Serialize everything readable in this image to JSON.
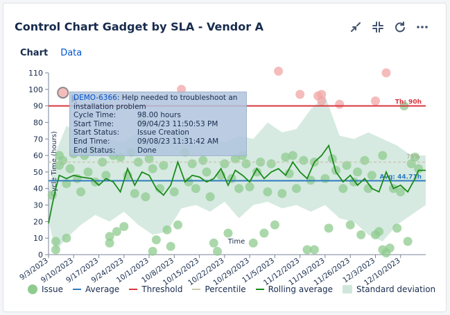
{
  "gadget": {
    "title": "Control Chart Gadget by SLA - Vendor A",
    "icons": [
      "minimize-icon",
      "collapse-icon",
      "refresh-icon",
      "more-icon"
    ]
  },
  "tabs": [
    {
      "label": "Chart"
    },
    {
      "label": "Data"
    }
  ],
  "tooltip": {
    "issue_key": "DEMO-6366",
    "summary": ": Help needed to troubleshoot an installation problem",
    "rows": [
      {
        "k": "Cycle Time:",
        "v": "98.00 hours"
      },
      {
        "k": "Start Time:",
        "v": "09/04/23 11:50:53 PM"
      },
      {
        "k": "Start Status:",
        "v": "Issue Creation"
      },
      {
        "k": "End Time:",
        "v": "09/08/23 11:31:42 AM"
      },
      {
        "k": "End Status:",
        "v": "Done"
      }
    ]
  },
  "legend": [
    {
      "label": "Issue"
    },
    {
      "label": "Average"
    },
    {
      "label": "Threshold"
    },
    {
      "label": "Percentile"
    },
    {
      "label": "Rolling average"
    },
    {
      "label": "Standard deviation"
    }
  ],
  "colors": {
    "issue": "#8fcb8f",
    "average": "#2e7bbf",
    "threshold": "#d9363e",
    "percentile": "#c9c9b0",
    "rolling": "#1a8a1a",
    "stddev": "#cfe6dc"
  },
  "chart_data": {
    "type": "scatter",
    "title": "",
    "xlabel": "Time",
    "ylabel": "Cycle Time (hours)",
    "ylim": [
      0,
      110
    ],
    "xlim": [
      "2023-09-03",
      "2023-12-17"
    ],
    "yticks": [
      "0",
      "10",
      "20",
      "30",
      "40",
      "50",
      "60",
      "70",
      "80",
      "90",
      "100",
      "110"
    ],
    "xticks": [
      "9/3/2023",
      "9/10/2023",
      "9/17/2023",
      "9/24/2023",
      "10/1/2023",
      "10/8/2023",
      "10/15/2023",
      "10/22/2023",
      "10/29/2023",
      "11/5/2023",
      "11/12/2023",
      "11/19/2023",
      "11/26/2023",
      "12/3/2023",
      "12/10/2023"
    ],
    "threshold": {
      "value": 90,
      "label": "Th: 90h"
    },
    "average": {
      "value": 44.71,
      "label": "Avg: 44.71h"
    },
    "percentile": {
      "value": 56,
      "label": "75%"
    },
    "issues": [
      {
        "x": "2023-09-04",
        "y": 36
      },
      {
        "x": "2023-09-05",
        "y": 8
      },
      {
        "x": "2023-09-05",
        "y": 3
      },
      {
        "x": "2023-09-06",
        "y": 60
      },
      {
        "x": "2023-09-06",
        "y": 54
      },
      {
        "x": "2023-09-07",
        "y": 98
      },
      {
        "x": "2023-09-07",
        "y": 57
      },
      {
        "x": "2023-09-08",
        "y": 43
      },
      {
        "x": "2023-09-08",
        "y": 10
      },
      {
        "x": "2023-09-09",
        "y": 52
      },
      {
        "x": "2023-09-10",
        "y": 61
      },
      {
        "x": "2023-09-11",
        "y": 46
      },
      {
        "x": "2023-09-12",
        "y": 38
      },
      {
        "x": "2023-09-13",
        "y": 60
      },
      {
        "x": "2023-09-14",
        "y": 50
      },
      {
        "x": "2023-09-15",
        "y": 63
      },
      {
        "x": "2023-09-16",
        "y": 44
      },
      {
        "x": "2023-09-18",
        "y": 56
      },
      {
        "x": "2023-09-19",
        "y": 48
      },
      {
        "x": "2023-09-20",
        "y": 11
      },
      {
        "x": "2023-09-20",
        "y": 7
      },
      {
        "x": "2023-09-21",
        "y": 60
      },
      {
        "x": "2023-09-22",
        "y": 14
      },
      {
        "x": "2023-09-23",
        "y": 59
      },
      {
        "x": "2023-09-24",
        "y": 17
      },
      {
        "x": "2023-09-25",
        "y": 48
      },
      {
        "x": "2023-09-26",
        "y": 62
      },
      {
        "x": "2023-09-27",
        "y": 37
      },
      {
        "x": "2023-09-28",
        "y": 56
      },
      {
        "x": "2023-09-29",
        "y": 80
      },
      {
        "x": "2023-09-30",
        "y": 35
      },
      {
        "x": "2023-10-01",
        "y": 58
      },
      {
        "x": "2023-10-02",
        "y": 52
      },
      {
        "x": "2023-10-02",
        "y": 2
      },
      {
        "x": "2023-10-03",
        "y": 9
      },
      {
        "x": "2023-10-04",
        "y": 40
      },
      {
        "x": "2023-10-05",
        "y": 54
      },
      {
        "x": "2023-10-06",
        "y": 15
      },
      {
        "x": "2023-10-07",
        "y": 5
      },
      {
        "x": "2023-10-08",
        "y": 38
      },
      {
        "x": "2023-10-09",
        "y": 18
      },
      {
        "x": "2023-10-10",
        "y": 100
      },
      {
        "x": "2023-10-11",
        "y": 62
      },
      {
        "x": "2023-10-12",
        "y": 44
      },
      {
        "x": "2023-10-13",
        "y": 55
      },
      {
        "x": "2023-10-14",
        "y": 40
      },
      {
        "x": "2023-10-16",
        "y": 57
      },
      {
        "x": "2023-10-17",
        "y": 50
      },
      {
        "x": "2023-10-18",
        "y": 35
      },
      {
        "x": "2023-10-19",
        "y": 7
      },
      {
        "x": "2023-10-20",
        "y": 2
      },
      {
        "x": "2023-10-21",
        "y": 48
      },
      {
        "x": "2023-10-22",
        "y": 55
      },
      {
        "x": "2023-10-23",
        "y": 13
      },
      {
        "x": "2023-10-24",
        "y": 46
      },
      {
        "x": "2023-10-25",
        "y": 58
      },
      {
        "x": "2023-10-26",
        "y": 40
      },
      {
        "x": "2023-10-27",
        "y": 60
      },
      {
        "x": "2023-10-28",
        "y": 55
      },
      {
        "x": "2023-10-29",
        "y": 41
      },
      {
        "x": "2023-10-30",
        "y": 7
      },
      {
        "x": "2023-10-31",
        "y": 50
      },
      {
        "x": "2023-11-01",
        "y": 56
      },
      {
        "x": "2023-11-02",
        "y": 13
      },
      {
        "x": "2023-11-03",
        "y": 38
      },
      {
        "x": "2023-11-04",
        "y": 55
      },
      {
        "x": "2023-11-05",
        "y": 18
      },
      {
        "x": "2023-11-06",
        "y": 111
      },
      {
        "x": "2023-11-07",
        "y": 37
      },
      {
        "x": "2023-11-08",
        "y": 59
      },
      {
        "x": "2023-11-09",
        "y": 49
      },
      {
        "x": "2023-11-10",
        "y": 60
      },
      {
        "x": "2023-11-11",
        "y": 40
      },
      {
        "x": "2023-11-12",
        "y": 97
      },
      {
        "x": "2023-11-13",
        "y": 57
      },
      {
        "x": "2023-11-14",
        "y": 3
      },
      {
        "x": "2023-11-15",
        "y": 45
      },
      {
        "x": "2023-11-16",
        "y": 56
      },
      {
        "x": "2023-11-16",
        "y": 3
      },
      {
        "x": "2023-11-17",
        "y": 96
      },
      {
        "x": "2023-11-18",
        "y": 97
      },
      {
        "x": "2023-11-18",
        "y": 93
      },
      {
        "x": "2023-11-19",
        "y": 46
      },
      {
        "x": "2023-11-20",
        "y": 16
      },
      {
        "x": "2023-11-21",
        "y": 58
      },
      {
        "x": "2023-11-22",
        "y": 51
      },
      {
        "x": "2023-11-23",
        "y": 91
      },
      {
        "x": "2023-11-24",
        "y": 40
      },
      {
        "x": "2023-11-25",
        "y": 54
      },
      {
        "x": "2023-11-26",
        "y": 18
      },
      {
        "x": "2023-11-27",
        "y": 44
      },
      {
        "x": "2023-11-28",
        "y": 50
      },
      {
        "x": "2023-11-29",
        "y": 12
      },
      {
        "x": "2023-11-30",
        "y": 57
      },
      {
        "x": "2023-12-01",
        "y": 40
      },
      {
        "x": "2023-12-02",
        "y": 48
      },
      {
        "x": "2023-12-03",
        "y": 93
      },
      {
        "x": "2023-12-03",
        "y": 12
      },
      {
        "x": "2023-12-04",
        "y": 14
      },
      {
        "x": "2023-12-05",
        "y": 60
      },
      {
        "x": "2023-12-05",
        "y": 3
      },
      {
        "x": "2023-12-06",
        "y": 1
      },
      {
        "x": "2023-12-06",
        "y": 110
      },
      {
        "x": "2023-12-07",
        "y": 4
      },
      {
        "x": "2023-12-08",
        "y": 40
      },
      {
        "x": "2023-12-09",
        "y": 16
      },
      {
        "x": "2023-12-10",
        "y": 38
      },
      {
        "x": "2023-12-11",
        "y": 90
      },
      {
        "x": "2023-12-12",
        "y": 8
      },
      {
        "x": "2023-12-13",
        "y": 55
      },
      {
        "x": "2023-12-14",
        "y": 59
      },
      {
        "x": "2023-12-15",
        "y": 52
      }
    ],
    "rolling_average": [
      {
        "x": "2023-09-03",
        "y": 19
      },
      {
        "x": "2023-09-04",
        "y": 30
      },
      {
        "x": "2023-09-05",
        "y": 40
      },
      {
        "x": "2023-09-06",
        "y": 48
      },
      {
        "x": "2023-09-08",
        "y": 46
      },
      {
        "x": "2023-09-10",
        "y": 48
      },
      {
        "x": "2023-09-12",
        "y": 47
      },
      {
        "x": "2023-09-15",
        "y": 46
      },
      {
        "x": "2023-09-17",
        "y": 42
      },
      {
        "x": "2023-09-19",
        "y": 46
      },
      {
        "x": "2023-09-21",
        "y": 44
      },
      {
        "x": "2023-09-23",
        "y": 38
      },
      {
        "x": "2023-09-25",
        "y": 52
      },
      {
        "x": "2023-09-27",
        "y": 42
      },
      {
        "x": "2023-09-29",
        "y": 50
      },
      {
        "x": "2023-10-01",
        "y": 48
      },
      {
        "x": "2023-10-03",
        "y": 40
      },
      {
        "x": "2023-10-05",
        "y": 36
      },
      {
        "x": "2023-10-07",
        "y": 42
      },
      {
        "x": "2023-10-09",
        "y": 56
      },
      {
        "x": "2023-10-11",
        "y": 44
      },
      {
        "x": "2023-10-13",
        "y": 48
      },
      {
        "x": "2023-10-15",
        "y": 47
      },
      {
        "x": "2023-10-17",
        "y": 44
      },
      {
        "x": "2023-10-19",
        "y": 46
      },
      {
        "x": "2023-10-21",
        "y": 52
      },
      {
        "x": "2023-10-23",
        "y": 42
      },
      {
        "x": "2023-10-25",
        "y": 51
      },
      {
        "x": "2023-10-27",
        "y": 48
      },
      {
        "x": "2023-10-29",
        "y": 44
      },
      {
        "x": "2023-10-31",
        "y": 52
      },
      {
        "x": "2023-11-02",
        "y": 46
      },
      {
        "x": "2023-11-04",
        "y": 50
      },
      {
        "x": "2023-11-06",
        "y": 52
      },
      {
        "x": "2023-11-08",
        "y": 48
      },
      {
        "x": "2023-11-10",
        "y": 56
      },
      {
        "x": "2023-11-12",
        "y": 50
      },
      {
        "x": "2023-11-14",
        "y": 46
      },
      {
        "x": "2023-11-16",
        "y": 56
      },
      {
        "x": "2023-11-18",
        "y": 60
      },
      {
        "x": "2023-11-20",
        "y": 66
      },
      {
        "x": "2023-11-22",
        "y": 50
      },
      {
        "x": "2023-11-24",
        "y": 44
      },
      {
        "x": "2023-11-26",
        "y": 48
      },
      {
        "x": "2023-11-28",
        "y": 42
      },
      {
        "x": "2023-11-30",
        "y": 46
      },
      {
        "x": "2023-12-02",
        "y": 40
      },
      {
        "x": "2023-12-04",
        "y": 38
      },
      {
        "x": "2023-12-06",
        "y": 50
      },
      {
        "x": "2023-12-08",
        "y": 40
      },
      {
        "x": "2023-12-10",
        "y": 42
      },
      {
        "x": "2023-12-12",
        "y": 38
      },
      {
        "x": "2023-12-14",
        "y": 46
      },
      {
        "x": "2023-12-15",
        "y": 51
      },
      {
        "x": "2023-12-17",
        "y": 51
      }
    ],
    "std_band": [
      {
        "x": "2023-09-03",
        "lo": 20,
        "hi": 36
      },
      {
        "x": "2023-09-05",
        "lo": 2,
        "hi": 62
      },
      {
        "x": "2023-09-08",
        "lo": 10,
        "hi": 78
      },
      {
        "x": "2023-09-12",
        "lo": 18,
        "hi": 72
      },
      {
        "x": "2023-09-16",
        "lo": 24,
        "hi": 66
      },
      {
        "x": "2023-09-20",
        "lo": 20,
        "hi": 70
      },
      {
        "x": "2023-09-24",
        "lo": 26,
        "hi": 68
      },
      {
        "x": "2023-09-28",
        "lo": 18,
        "hi": 74
      },
      {
        "x": "2023-10-02",
        "lo": 12,
        "hi": 68
      },
      {
        "x": "2023-10-06",
        "lo": 14,
        "hi": 70
      },
      {
        "x": "2023-10-10",
        "lo": 28,
        "hi": 76
      },
      {
        "x": "2023-10-14",
        "lo": 30,
        "hi": 66
      },
      {
        "x": "2023-10-18",
        "lo": 26,
        "hi": 70
      },
      {
        "x": "2023-10-22",
        "lo": 32,
        "hi": 68
      },
      {
        "x": "2023-10-26",
        "lo": 22,
        "hi": 72
      },
      {
        "x": "2023-10-30",
        "lo": 30,
        "hi": 70
      },
      {
        "x": "2023-11-03",
        "lo": 32,
        "hi": 80
      },
      {
        "x": "2023-11-07",
        "lo": 28,
        "hi": 74
      },
      {
        "x": "2023-11-11",
        "lo": 30,
        "hi": 76
      },
      {
        "x": "2023-11-15",
        "lo": 26,
        "hi": 88
      },
      {
        "x": "2023-11-19",
        "lo": 30,
        "hi": 96
      },
      {
        "x": "2023-11-23",
        "lo": 22,
        "hi": 72
      },
      {
        "x": "2023-11-27",
        "lo": 20,
        "hi": 70
      },
      {
        "x": "2023-12-01",
        "lo": 12,
        "hi": 74
      },
      {
        "x": "2023-12-05",
        "lo": 8,
        "hi": 70
      },
      {
        "x": "2023-12-09",
        "lo": 18,
        "hi": 66
      },
      {
        "x": "2023-12-13",
        "lo": 24,
        "hi": 60
      },
      {
        "x": "2023-12-17",
        "lo": 30,
        "hi": 60
      }
    ]
  }
}
